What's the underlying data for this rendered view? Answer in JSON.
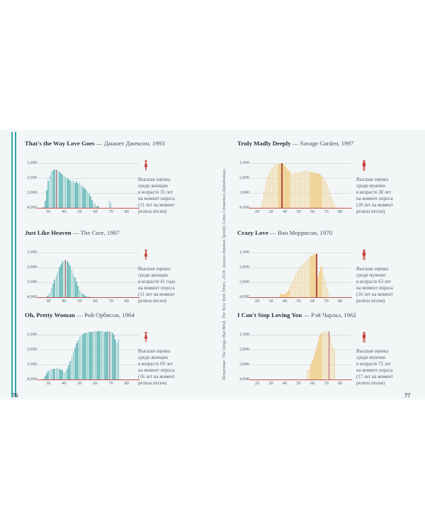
{
  "page": {
    "left_number": "76",
    "right_number": "77",
    "source_note": "Источник: The Songs that Bind, The New York Times, 2018. Анализ данных Spotify Сета Стивенса-Давидовица.",
    "title_separator": " — ",
    "accent_teal": "#2fa7aa",
    "band_background": "#f2f6f7",
    "baseline_red": "#c2544a"
  },
  "chart_data": [
    {
      "type": "bar",
      "title_en": "That's the Way Love Goes",
      "title_ru": "Джанет Джексон, 1993",
      "gender": "female",
      "icon": "woman-icon",
      "annotation": "Высшая оценка\nсреди женщин\nв возрасте 35 лет\nна момент опроса\n(11 лет на момент\nрелиза песни)",
      "bar_color": "#7dc1c2",
      "marker_color": "#a0524d",
      "marker_age": 35,
      "xlim": [
        24,
        86
      ],
      "ylim": [
        600,
        4000
      ],
      "y_axis_inverted": true,
      "x_ticks": [
        30,
        40,
        50,
        60,
        70,
        80
      ],
      "y_ticks": [
        {
          "value": 1000,
          "label": "1,000"
        },
        {
          "value": 2000,
          "label": "2,000"
        },
        {
          "value": 3000,
          "label": "3,000"
        },
        {
          "value": 4000,
          "label": "4,000"
        }
      ],
      "bars": [
        [
          27,
          3900
        ],
        [
          28,
          3500
        ],
        [
          29,
          2800
        ],
        [
          30,
          2200
        ],
        [
          31,
          1800
        ],
        [
          32,
          1550
        ],
        [
          33,
          1460
        ],
        [
          34,
          1420
        ],
        [
          35,
          1400
        ],
        [
          36,
          1450
        ],
        [
          37,
          1550
        ],
        [
          38,
          1640
        ],
        [
          39,
          1740
        ],
        [
          40,
          1840
        ],
        [
          41,
          1940
        ],
        [
          42,
          2000
        ],
        [
          43,
          2080
        ],
        [
          44,
          2150
        ],
        [
          45,
          2240
        ],
        [
          46,
          2180
        ],
        [
          47,
          2300
        ],
        [
          48,
          2240
        ],
        [
          49,
          2380
        ],
        [
          50,
          2330
        ],
        [
          51,
          2450
        ],
        [
          52,
          2550
        ],
        [
          53,
          2650
        ],
        [
          54,
          2760
        ],
        [
          55,
          2900
        ],
        [
          56,
          3060
        ],
        [
          57,
          3250
        ],
        [
          58,
          3450
        ],
        [
          59,
          3650
        ],
        [
          60,
          3760
        ],
        [
          61,
          3850
        ],
        [
          62,
          3900
        ],
        [
          69,
          3580
        ],
        [
          70,
          3650
        ]
      ]
    },
    {
      "type": "bar",
      "title_en": "Just Like Heaven",
      "title_ru": "The Cure, 1987",
      "gender": "female",
      "icon": "woman-icon",
      "annotation": "Высшая оценка\nсреди женщин\nв возрасте 41 года\nна момент опроса\n(11 лет на момент\nрелиза песни)",
      "bar_color": "#7dc1c2",
      "marker_color": "#a0524d",
      "marker_age": 41,
      "xlim": [
        24,
        86
      ],
      "ylim": [
        600,
        4000
      ],
      "y_axis_inverted": true,
      "x_ticks": [
        30,
        40,
        50,
        60,
        70,
        80
      ],
      "y_ticks": [
        {
          "value": 1000,
          "label": "1,000"
        },
        {
          "value": 2000,
          "label": "2,000"
        },
        {
          "value": 3000,
          "label": "3,000"
        },
        {
          "value": 4000,
          "label": "4,000"
        }
      ],
      "bars": [
        [
          29,
          3950
        ],
        [
          30,
          3850
        ],
        [
          31,
          3650
        ],
        [
          32,
          3400
        ],
        [
          33,
          3100
        ],
        [
          34,
          2800
        ],
        [
          35,
          2520
        ],
        [
          36,
          2260
        ],
        [
          37,
          2010
        ],
        [
          38,
          1780
        ],
        [
          39,
          1600
        ],
        [
          40,
          1490
        ],
        [
          41,
          1450
        ],
        [
          42,
          1540
        ],
        [
          43,
          1690
        ],
        [
          44,
          1890
        ],
        [
          45,
          2140
        ],
        [
          46,
          2400
        ],
        [
          47,
          2660
        ],
        [
          48,
          2950
        ],
        [
          49,
          3250
        ],
        [
          50,
          3500
        ],
        [
          51,
          3650
        ],
        [
          52,
          3780
        ],
        [
          53,
          3860
        ],
        [
          54,
          3900
        ],
        [
          55,
          3930
        ],
        [
          56,
          3950
        ]
      ]
    },
    {
      "type": "bar",
      "title_en": "Oh, Pretty Woman",
      "title_ru": "Рой Орбисон, 1964",
      "gender": "female",
      "icon": "woman-icon",
      "annotation": "Высшая оценка\nсреди женщин\nв возрасте 69 лет\nна момент опроса\n(16 лет на момент\nрелиза песни)",
      "bar_color": "#7dc1c2",
      "marker_color": "#8b827b",
      "marker_age": 69,
      "xlim": [
        24,
        86
      ],
      "ylim": [
        600,
        4000
      ],
      "y_axis_inverted": true,
      "x_ticks": [
        30,
        40,
        50,
        60,
        70,
        80
      ],
      "y_ticks": [
        {
          "value": 1000,
          "label": "1,000"
        },
        {
          "value": 2000,
          "label": "2,000"
        },
        {
          "value": 3000,
          "label": "3,000"
        },
        {
          "value": 4000,
          "label": "4,000"
        }
      ],
      "bars": [
        [
          27,
          3900
        ],
        [
          28,
          3760
        ],
        [
          29,
          3560
        ],
        [
          30,
          3420
        ],
        [
          31,
          3360
        ],
        [
          32,
          3300
        ],
        [
          33,
          3260
        ],
        [
          34,
          3300
        ],
        [
          35,
          3250
        ],
        [
          36,
          3210
        ],
        [
          37,
          3260
        ],
        [
          38,
          3310
        ],
        [
          39,
          3400
        ],
        [
          40,
          3500
        ],
        [
          41,
          3450
        ],
        [
          42,
          3300
        ],
        [
          43,
          3050
        ],
        [
          44,
          2750
        ],
        [
          45,
          2450
        ],
        [
          46,
          2150
        ],
        [
          47,
          1850
        ],
        [
          48,
          1550
        ],
        [
          49,
          1350
        ],
        [
          50,
          1150
        ],
        [
          51,
          1040
        ],
        [
          52,
          950
        ],
        [
          53,
          900
        ],
        [
          54,
          860
        ],
        [
          55,
          820
        ],
        [
          56,
          800
        ],
        [
          57,
          790
        ],
        [
          58,
          770
        ],
        [
          59,
          760
        ],
        [
          60,
          750
        ],
        [
          61,
          760
        ],
        [
          62,
          750
        ],
        [
          63,
          745
        ],
        [
          64,
          750
        ],
        [
          65,
          760
        ],
        [
          66,
          770
        ],
        [
          67,
          780
        ],
        [
          68,
          750
        ],
        [
          69,
          730
        ],
        [
          70,
          780
        ],
        [
          71,
          850
        ],
        [
          72,
          1000
        ],
        [
          73,
          1300
        ],
        [
          74,
          1500
        ],
        [
          75,
          1250
        ]
      ]
    },
    {
      "type": "bar",
      "title_en": "Truly Madly Deeply",
      "title_ru": "Savage Garden, 1997",
      "gender": "male",
      "icon": "man-icon",
      "annotation": "Высшая оценка\nсреди мужчин\nв возрасте 38 лет\nна момент опроса\n(18 лет на момент\nрелиза песни)",
      "bar_color": "#f0d49c",
      "marker_color": "#b24a3f",
      "marker_age": 38,
      "xlim": [
        16,
        86
      ],
      "ylim": [
        600,
        4000
      ],
      "y_axis_inverted": true,
      "x_ticks": [
        20,
        30,
        40,
        50,
        60,
        70,
        80
      ],
      "y_ticks": [
        {
          "value": 1000,
          "label": "1,000"
        },
        {
          "value": 2000,
          "label": "2,000"
        },
        {
          "value": 3000,
          "label": "3,000"
        },
        {
          "value": 4000,
          "label": "4,000"
        }
      ],
      "bars": [
        [
          23,
          3900
        ],
        [
          24,
          3450
        ],
        [
          25,
          2950
        ],
        [
          26,
          2500
        ],
        [
          27,
          2100
        ],
        [
          28,
          1800
        ],
        [
          29,
          1550
        ],
        [
          30,
          1350
        ],
        [
          31,
          1250
        ],
        [
          32,
          1150
        ],
        [
          33,
          1100
        ],
        [
          34,
          1080
        ],
        [
          35,
          1060
        ],
        [
          36,
          1040
        ],
        [
          37,
          1020
        ],
        [
          38,
          1000
        ],
        [
          39,
          1040
        ],
        [
          40,
          1120
        ],
        [
          41,
          1250
        ],
        [
          42,
          1400
        ],
        [
          43,
          1500
        ],
        [
          44,
          1580
        ],
        [
          45,
          1650
        ],
        [
          46,
          1700
        ],
        [
          47,
          1660
        ],
        [
          48,
          1620
        ],
        [
          49,
          1660
        ],
        [
          50,
          1620
        ],
        [
          51,
          1580
        ],
        [
          52,
          1540
        ],
        [
          53,
          1560
        ],
        [
          54,
          1520
        ],
        [
          55,
          1480
        ],
        [
          56,
          1520
        ],
        [
          57,
          1560
        ],
        [
          58,
          1520
        ],
        [
          59,
          1600
        ],
        [
          60,
          1560
        ],
        [
          61,
          1640
        ],
        [
          62,
          1600
        ],
        [
          63,
          1680
        ],
        [
          64,
          1640
        ],
        [
          65,
          1720
        ],
        [
          66,
          1780
        ],
        [
          67,
          1860
        ],
        [
          68,
          1960
        ],
        [
          69,
          2080
        ],
        [
          70,
          2200
        ],
        [
          71,
          2450
        ],
        [
          72,
          2750
        ],
        [
          73,
          3050
        ],
        [
          74,
          3350
        ],
        [
          75,
          3600
        ],
        [
          76,
          3800
        ],
        [
          77,
          3920
        ]
      ]
    },
    {
      "type": "bar",
      "title_en": "Crazy Love",
      "title_ru": "Ван Моррисон, 1970",
      "gender": "male",
      "icon": "man-icon",
      "annotation": "Высшая оценка\nсреди мужчин\nв возрасте 63 лет\nна момент опроса\n(16 лет на момент\nрелиза песни)",
      "bar_color": "#f0d49c",
      "marker_color": "#b24a3f",
      "marker_age": 63,
      "xlim": [
        16,
        86
      ],
      "ylim": [
        600,
        4000
      ],
      "y_axis_inverted": true,
      "x_ticks": [
        20,
        30,
        40,
        50,
        60,
        70,
        80
      ],
      "y_ticks": [
        {
          "value": 1000,
          "label": "1,000"
        },
        {
          "value": 2000,
          "label": "2,000"
        },
        {
          "value": 3000,
          "label": "3,000"
        },
        {
          "value": 4000,
          "label": "4,000"
        }
      ],
      "bars": [
        [
          37,
          3780
        ],
        [
          38,
          3820
        ],
        [
          39,
          3760
        ],
        [
          40,
          3800
        ],
        [
          41,
          3700
        ],
        [
          42,
          3600
        ],
        [
          43,
          3450
        ],
        [
          44,
          3250
        ],
        [
          45,
          3050
        ],
        [
          46,
          2850
        ],
        [
          47,
          2650
        ],
        [
          48,
          2450
        ],
        [
          49,
          2250
        ],
        [
          50,
          2100
        ],
        [
          51,
          1950
        ],
        [
          52,
          1850
        ],
        [
          53,
          1750
        ],
        [
          54,
          1650
        ],
        [
          55,
          1550
        ],
        [
          56,
          1450
        ],
        [
          57,
          1350
        ],
        [
          58,
          1280
        ],
        [
          59,
          1220
        ],
        [
          60,
          1170
        ],
        [
          61,
          1120
        ],
        [
          62,
          1100
        ],
        [
          63,
          1080
        ],
        [
          64,
          2600
        ],
        [
          65,
          2250
        ],
        [
          66,
          1950
        ],
        [
          67,
          1900
        ],
        [
          68,
          2300
        ],
        [
          69,
          2700
        ],
        [
          70,
          3050
        ],
        [
          71,
          3400
        ],
        [
          72,
          3750
        ]
      ]
    },
    {
      "type": "bar",
      "title_en": "I Can't Stop Loving You",
      "title_ru": "Рэй Чарльз, 1962",
      "gender": "male",
      "icon": "man-icon",
      "annotation": "Высшая оценка\nсреди мужчин\nв возрасте 72 лет\nна момент опроса\n(17 лет на момент\nрелиза песни)",
      "bar_color": "#f0d49c",
      "marker_color": "#b24a3f",
      "marker_age": 72,
      "xlim": [
        16,
        86
      ],
      "ylim": [
        600,
        4000
      ],
      "y_axis_inverted": true,
      "x_ticks": [
        20,
        30,
        40,
        50,
        60,
        70,
        80
      ],
      "y_ticks": [
        {
          "value": 1000,
          "label": "1,000"
        },
        {
          "value": 2000,
          "label": "2,000"
        },
        {
          "value": 3000,
          "label": "3,000"
        },
        {
          "value": 4000,
          "label": "4,000"
        }
      ],
      "bars": [
        [
          56,
          3350
        ],
        [
          57,
          3300
        ],
        [
          58,
          3350
        ],
        [
          59,
          2950
        ],
        [
          60,
          2700
        ],
        [
          61,
          2450
        ],
        [
          62,
          2150
        ],
        [
          63,
          1800
        ],
        [
          64,
          1450
        ],
        [
          65,
          1100
        ],
        [
          66,
          880
        ],
        [
          67,
          800
        ],
        [
          68,
          770
        ],
        [
          69,
          760
        ],
        [
          70,
          770
        ],
        [
          71,
          800
        ],
        [
          72,
          740
        ],
        [
          73,
          1100
        ],
        [
          74,
          1500
        ],
        [
          75,
          1850
        ],
        [
          76,
          2000
        ]
      ]
    }
  ]
}
